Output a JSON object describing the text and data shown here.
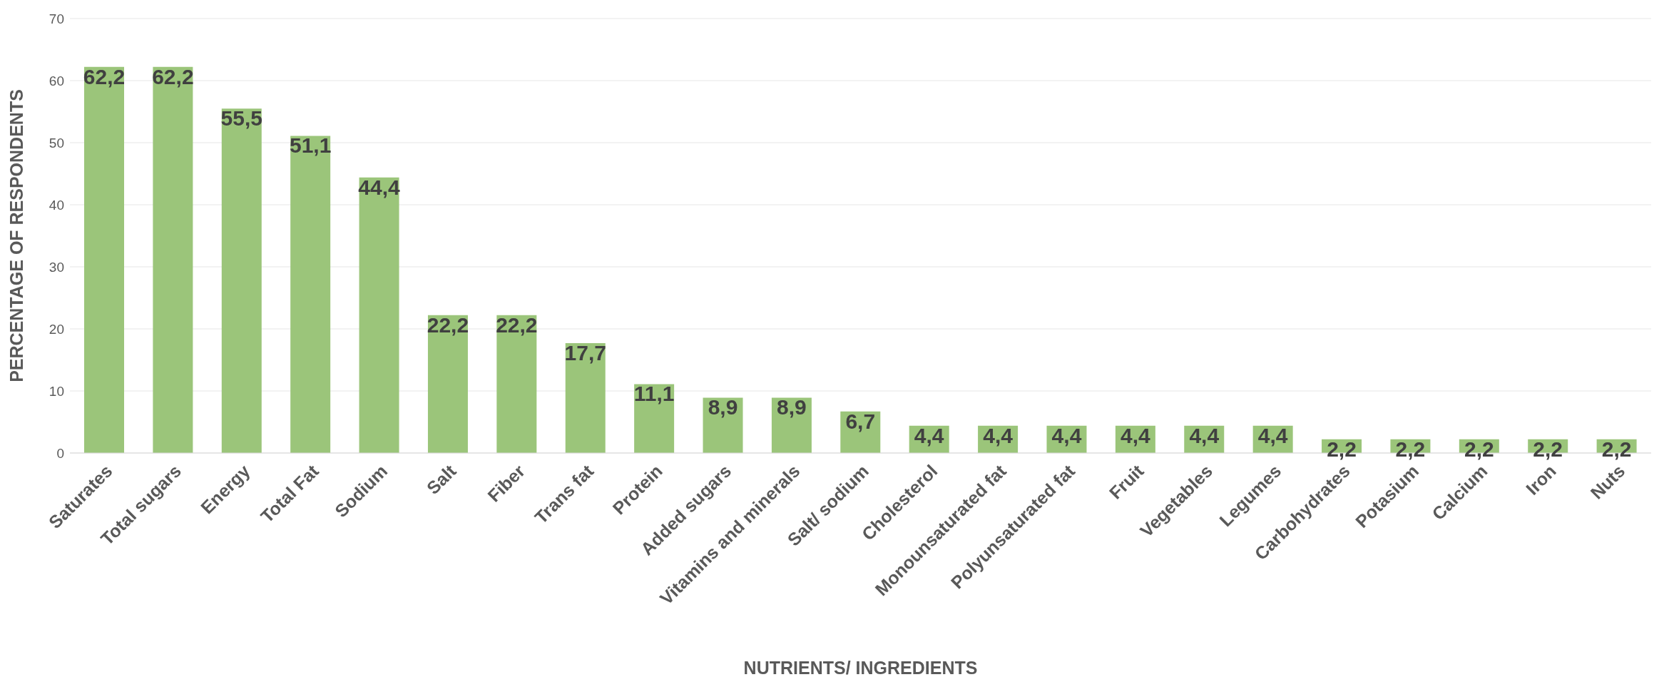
{
  "chart_data": {
    "type": "bar",
    "xlabel": "NUTRIENTS/ INGREDIENTS",
    "ylabel": "PERCENTAGE OF RESPONDENTS",
    "categories": [
      "Saturates",
      "Total sugars",
      "Energy",
      "Total Fat",
      "Sodium",
      "Salt",
      "Fiber",
      "Trans fat",
      "Protein",
      "Added sugars",
      "Vitamins and minerals",
      "Salt/ sodium",
      "Cholesterol",
      "Monounsaturated fat",
      "Polyunsaturated fat",
      "Fruit",
      "Vegetables",
      "Legumes",
      "Carbohydrates",
      "Potasium",
      "Calcium",
      "Iron",
      "Nuts"
    ],
    "values": [
      62.2,
      62.2,
      55.5,
      51.1,
      44.4,
      22.2,
      22.2,
      17.7,
      11.1,
      8.9,
      8.9,
      6.7,
      4.4,
      4.4,
      4.4,
      4.4,
      4.4,
      4.4,
      2.2,
      2.2,
      2.2,
      2.2,
      2.2
    ],
    "value_labels": [
      "62,2",
      "62,2",
      "55,5",
      "51,1",
      "44,4",
      "22,2",
      "22,2",
      "17,7",
      "11,1",
      "8,9",
      "8,9",
      "6,7",
      "4,4",
      "4,4",
      "4,4",
      "4,4",
      "4,4",
      "4,4",
      "2,2",
      "2,2",
      "2,2",
      "2,2",
      "2,2"
    ],
    "color": "#9bc57a",
    "ylim": [
      0,
      70
    ],
    "yticks": [
      0,
      10,
      20,
      30,
      40,
      50,
      60,
      70
    ],
    "grid": "y",
    "legend": false
  }
}
